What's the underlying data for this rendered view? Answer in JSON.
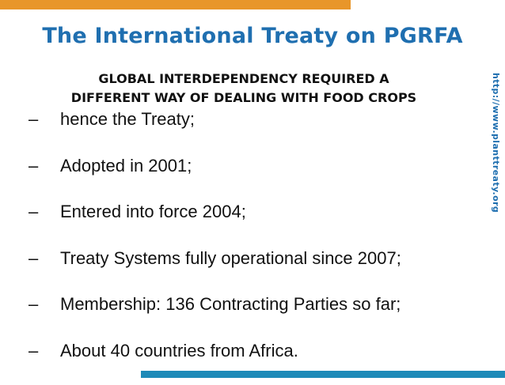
{
  "slide": {
    "title": "The International Treaty on PGRFA",
    "subtitle_lines": [
      "GLOBAL INTERDEPENDENCY REQUIRED A",
      "DIFFERENT WAY OF DEALING WITH FOOD CROPS"
    ],
    "dash": "–",
    "bullets": [
      "hence the Treaty;",
      "Adopted in 2001;",
      "Entered into force 2004;",
      "Treaty Systems fully operational since 2007;",
      "Membership:  136 Contracting Parties so far;",
      "About 40 countries from Africa."
    ],
    "side_url": "http://www.planttreaty.org"
  },
  "colors": {
    "accent_orange": "#e8962a",
    "title_blue": "#1f6fb0",
    "bottom_bar_blue": "#1e8ab8",
    "text": "#111111"
  }
}
